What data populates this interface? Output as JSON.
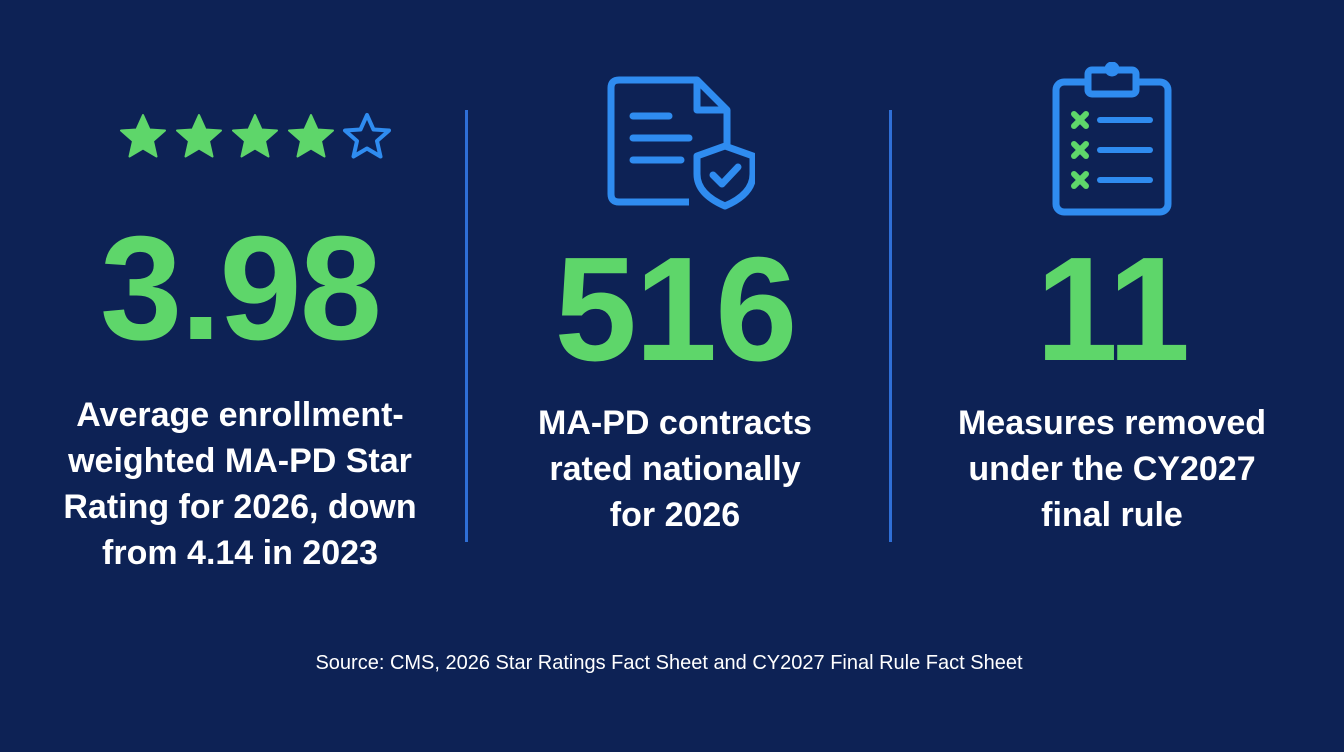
{
  "colors": {
    "background": "#0d2255",
    "accent_green": "#5ed66a",
    "accent_blue": "#2f8cf0",
    "divider": "#2f6fd6"
  },
  "stat_1": {
    "stars": {
      "filled": 4,
      "total": 5
    },
    "value": "3.98",
    "caption_lines": [
      "Average enrollment-",
      "weighted MA-PD Star",
      "Rating for 2026, down",
      "from 4.14 in 2023"
    ]
  },
  "stat_2": {
    "icon": "document-shield-check-icon",
    "value": "516",
    "caption_lines": [
      "MA-PD contracts",
      "rated nationally",
      "for 2026"
    ]
  },
  "stat_3": {
    "icon": "clipboard-checklist-icon",
    "value": "11",
    "caption_lines": [
      "Measures removed",
      "under the CY2027",
      "final rule"
    ]
  },
  "source": "Source: CMS, 2026 Star Ratings Fact Sheet and CY2027 Final Rule Fact Sheet"
}
